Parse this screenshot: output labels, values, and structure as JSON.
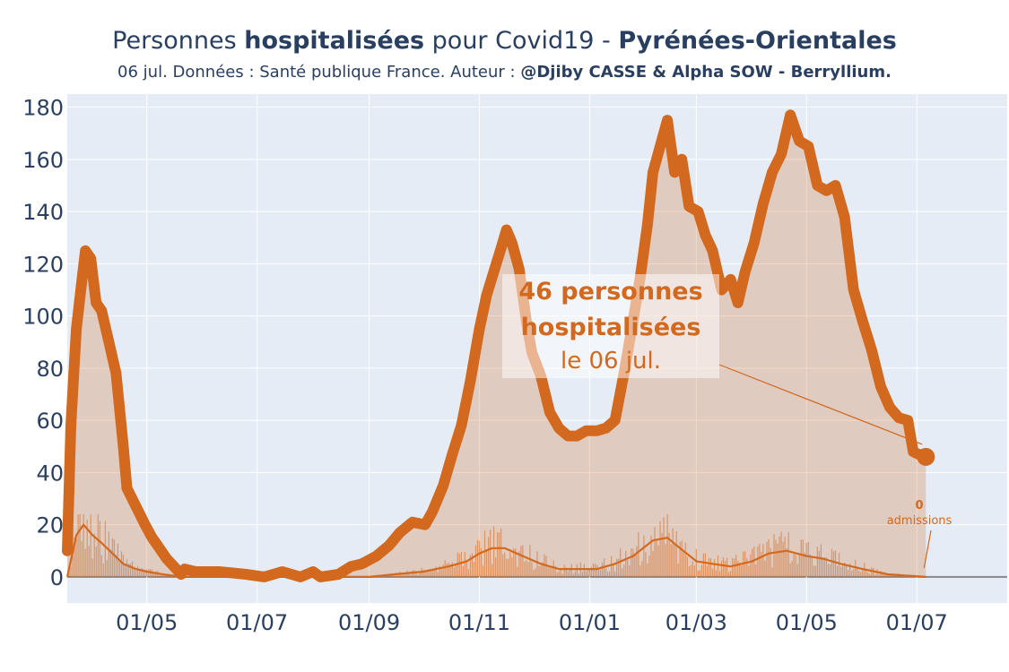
{
  "title": {
    "part1": "Personnes ",
    "part2": "hospitalisées",
    "part3": " pour Covid19 - ",
    "part4": "Pyrénées-Orientales"
  },
  "subtitle": {
    "text": "06 jul. Données : Santé publique France. Auteur : ",
    "author": "@Djiby CASSE & Alpha SOW - Berryllium."
  },
  "annotation": {
    "line1": "46 personnes",
    "line2": "hospitalisées",
    "line3": "le 06 jul."
  },
  "admissions_annotation": {
    "value": "0",
    "label": "admissions"
  },
  "colors": {
    "line": "#d2691e",
    "fill": "rgba(210,105,30,0.25)",
    "background": "#e5ecf6",
    "text": "#2a3f5f",
    "grid": "#ffffff"
  },
  "chart_data": {
    "type": "area",
    "title": "Personnes hospitalisées pour Covid19 - Pyrénées-Orientales",
    "x_tick_labels": [
      "01/05",
      "01/07",
      "01/09",
      "01/11",
      "01/01",
      "01/03",
      "01/05",
      "01/07"
    ],
    "x_tick_dates": [
      "2020-05-01",
      "2020-07-01",
      "2020-09-01",
      "2020-11-01",
      "2021-01-01",
      "2021-03-01",
      "2021-05-01",
      "2021-07-01"
    ],
    "x_range": [
      "2020-03-18",
      "2021-08-20"
    ],
    "y_ticks": [
      0,
      20,
      40,
      60,
      80,
      100,
      120,
      140,
      160,
      180
    ],
    "ylim": [
      -10,
      185
    ],
    "grid": true,
    "series": [
      {
        "role": "hospitalises",
        "style": "thick-line-filled",
        "points": [
          [
            "2020-03-18",
            10
          ],
          [
            "2020-03-20",
            58
          ],
          [
            "2020-03-23",
            95
          ],
          [
            "2020-03-26",
            113
          ],
          [
            "2020-03-28",
            125
          ],
          [
            "2020-03-31",
            122
          ],
          [
            "2020-04-03",
            105
          ],
          [
            "2020-04-06",
            102
          ],
          [
            "2020-04-10",
            90
          ],
          [
            "2020-04-14",
            78
          ],
          [
            "2020-04-18",
            50
          ],
          [
            "2020-04-20",
            34
          ],
          [
            "2020-04-25",
            27
          ],
          [
            "2020-04-30",
            20
          ],
          [
            "2020-05-04",
            15
          ],
          [
            "2020-05-08",
            11
          ],
          [
            "2020-05-12",
            7
          ],
          [
            "2020-05-16",
            4
          ],
          [
            "2020-05-20",
            1
          ],
          [
            "2020-05-22",
            3
          ],
          [
            "2020-05-28",
            2
          ],
          [
            "2020-06-10",
            2
          ],
          [
            "2020-06-25",
            1
          ],
          [
            "2020-07-05",
            0
          ],
          [
            "2020-07-15",
            2
          ],
          [
            "2020-07-25",
            0
          ],
          [
            "2020-08-01",
            2
          ],
          [
            "2020-08-05",
            0
          ],
          [
            "2020-08-15",
            1
          ],
          [
            "2020-08-22",
            4
          ],
          [
            "2020-08-28",
            5
          ],
          [
            "2020-09-05",
            8
          ],
          [
            "2020-09-12",
            12
          ],
          [
            "2020-09-18",
            17
          ],
          [
            "2020-09-25",
            21
          ],
          [
            "2020-10-02",
            20
          ],
          [
            "2020-10-06",
            25
          ],
          [
            "2020-10-12",
            35
          ],
          [
            "2020-10-17",
            47
          ],
          [
            "2020-10-22",
            58
          ],
          [
            "2020-10-27",
            75
          ],
          [
            "2020-11-01",
            95
          ],
          [
            "2020-11-05",
            108
          ],
          [
            "2020-11-09",
            117
          ],
          [
            "2020-11-13",
            126
          ],
          [
            "2020-11-16",
            133
          ],
          [
            "2020-11-19",
            128
          ],
          [
            "2020-11-23",
            118
          ],
          [
            "2020-11-27",
            98
          ],
          [
            "2020-11-30",
            86
          ],
          [
            "2020-12-05",
            77
          ],
          [
            "2020-12-10",
            63
          ],
          [
            "2020-12-15",
            57
          ],
          [
            "2020-12-20",
            54
          ],
          [
            "2020-12-25",
            54
          ],
          [
            "2020-12-30",
            56
          ],
          [
            "2021-01-05",
            56
          ],
          [
            "2021-01-10",
            57
          ],
          [
            "2021-01-15",
            60
          ],
          [
            "2021-01-20",
            78
          ],
          [
            "2021-01-25",
            98
          ],
          [
            "2021-01-29",
            115
          ],
          [
            "2021-02-02",
            135
          ],
          [
            "2021-02-05",
            155
          ],
          [
            "2021-02-09",
            165
          ],
          [
            "2021-02-13",
            175
          ],
          [
            "2021-02-17",
            155
          ],
          [
            "2021-02-21",
            160
          ],
          [
            "2021-02-25",
            142
          ],
          [
            "2021-03-02",
            140
          ],
          [
            "2021-03-06",
            131
          ],
          [
            "2021-03-10",
            125
          ],
          [
            "2021-03-15",
            110
          ],
          [
            "2021-03-20",
            114
          ],
          [
            "2021-03-24",
            105
          ],
          [
            "2021-03-28",
            117
          ],
          [
            "2021-04-02",
            128
          ],
          [
            "2021-04-07",
            143
          ],
          [
            "2021-04-12",
            155
          ],
          [
            "2021-04-17",
            162
          ],
          [
            "2021-04-22",
            177
          ],
          [
            "2021-04-27",
            167
          ],
          [
            "2021-05-02",
            165
          ],
          [
            "2021-05-07",
            150
          ],
          [
            "2021-05-12",
            148
          ],
          [
            "2021-05-17",
            150
          ],
          [
            "2021-05-22",
            138
          ],
          [
            "2021-05-27",
            110
          ],
          [
            "2021-06-01",
            98
          ],
          [
            "2021-06-06",
            87
          ],
          [
            "2021-06-11",
            73
          ],
          [
            "2021-06-16",
            65
          ],
          [
            "2021-06-21",
            61
          ],
          [
            "2021-06-26",
            60
          ],
          [
            "2021-06-29",
            48
          ],
          [
            "2021-07-02",
            47
          ],
          [
            "2021-07-06",
            46
          ]
        ]
      },
      {
        "role": "admissions-moyenne",
        "style": "thin-line",
        "points": [
          [
            "2020-03-18",
            0
          ],
          [
            "2020-03-23",
            16
          ],
          [
            "2020-03-27",
            20
          ],
          [
            "2020-04-01",
            16
          ],
          [
            "2020-04-06",
            13
          ],
          [
            "2020-04-12",
            9
          ],
          [
            "2020-04-18",
            5
          ],
          [
            "2020-04-25",
            3
          ],
          [
            "2020-05-01",
            2
          ],
          [
            "2020-05-10",
            1
          ],
          [
            "2020-05-20",
            0
          ],
          [
            "2020-09-01",
            0
          ],
          [
            "2020-09-15",
            1
          ],
          [
            "2020-10-01",
            2
          ],
          [
            "2020-10-15",
            4
          ],
          [
            "2020-10-25",
            6
          ],
          [
            "2020-11-01",
            9
          ],
          [
            "2020-11-08",
            11
          ],
          [
            "2020-11-15",
            11
          ],
          [
            "2020-11-25",
            8
          ],
          [
            "2020-12-05",
            5
          ],
          [
            "2020-12-15",
            3
          ],
          [
            "2020-12-25",
            3
          ],
          [
            "2021-01-05",
            3
          ],
          [
            "2021-01-15",
            5
          ],
          [
            "2021-01-25",
            8
          ],
          [
            "2021-02-05",
            14
          ],
          [
            "2021-02-13",
            15
          ],
          [
            "2021-02-20",
            11
          ],
          [
            "2021-03-01",
            6
          ],
          [
            "2021-03-10",
            5
          ],
          [
            "2021-03-20",
            4
          ],
          [
            "2021-04-01",
            6
          ],
          [
            "2021-04-10",
            9
          ],
          [
            "2021-04-20",
            10
          ],
          [
            "2021-05-01",
            8
          ],
          [
            "2021-05-10",
            7
          ],
          [
            "2021-05-20",
            5
          ],
          [
            "2021-06-01",
            3
          ],
          [
            "2021-06-15",
            1
          ],
          [
            "2021-07-06",
            0
          ]
        ]
      }
    ],
    "admissions_daily_max": 24,
    "last_value": {
      "date": "2021-07-06",
      "value": 46
    }
  }
}
